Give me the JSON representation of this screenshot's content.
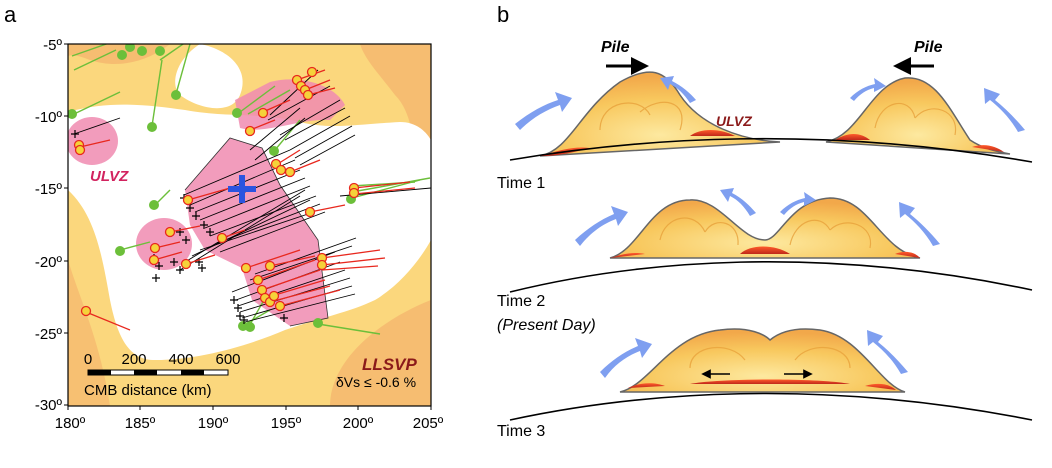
{
  "panel_a": {
    "label": "a",
    "y_ticks": [
      "-5º",
      "-10º",
      "-15º",
      "-20º",
      "-25º",
      "-30º"
    ],
    "x_ticks": [
      "180º",
      "185º",
      "190º",
      "195º",
      "200º",
      "205º"
    ],
    "ulvz_label": "ULVZ",
    "llsvp_label": "LLSVP",
    "dvs_label": "δVs ≤ -0.6 %",
    "scale_ticks": [
      "0",
      "200",
      "400",
      "600"
    ],
    "scale_label": "CMB distance (km)",
    "colors": {
      "llsvp": "#fbd77d",
      "llsvp_edge": "#f5b66e",
      "ulvz": "#f08bb0",
      "green": "#6cbf3a",
      "red": "#e8281e",
      "black": "#000000",
      "station": "#f5d23a",
      "cross": "#2b54e0"
    }
  },
  "panel_b": {
    "label": "b",
    "pile_label": "Pile",
    "ulvz_label": "ULVZ",
    "time1": "Time 1",
    "time2": "Time 2",
    "time2_sub": "(Present Day)",
    "time3": "Time 3"
  }
}
